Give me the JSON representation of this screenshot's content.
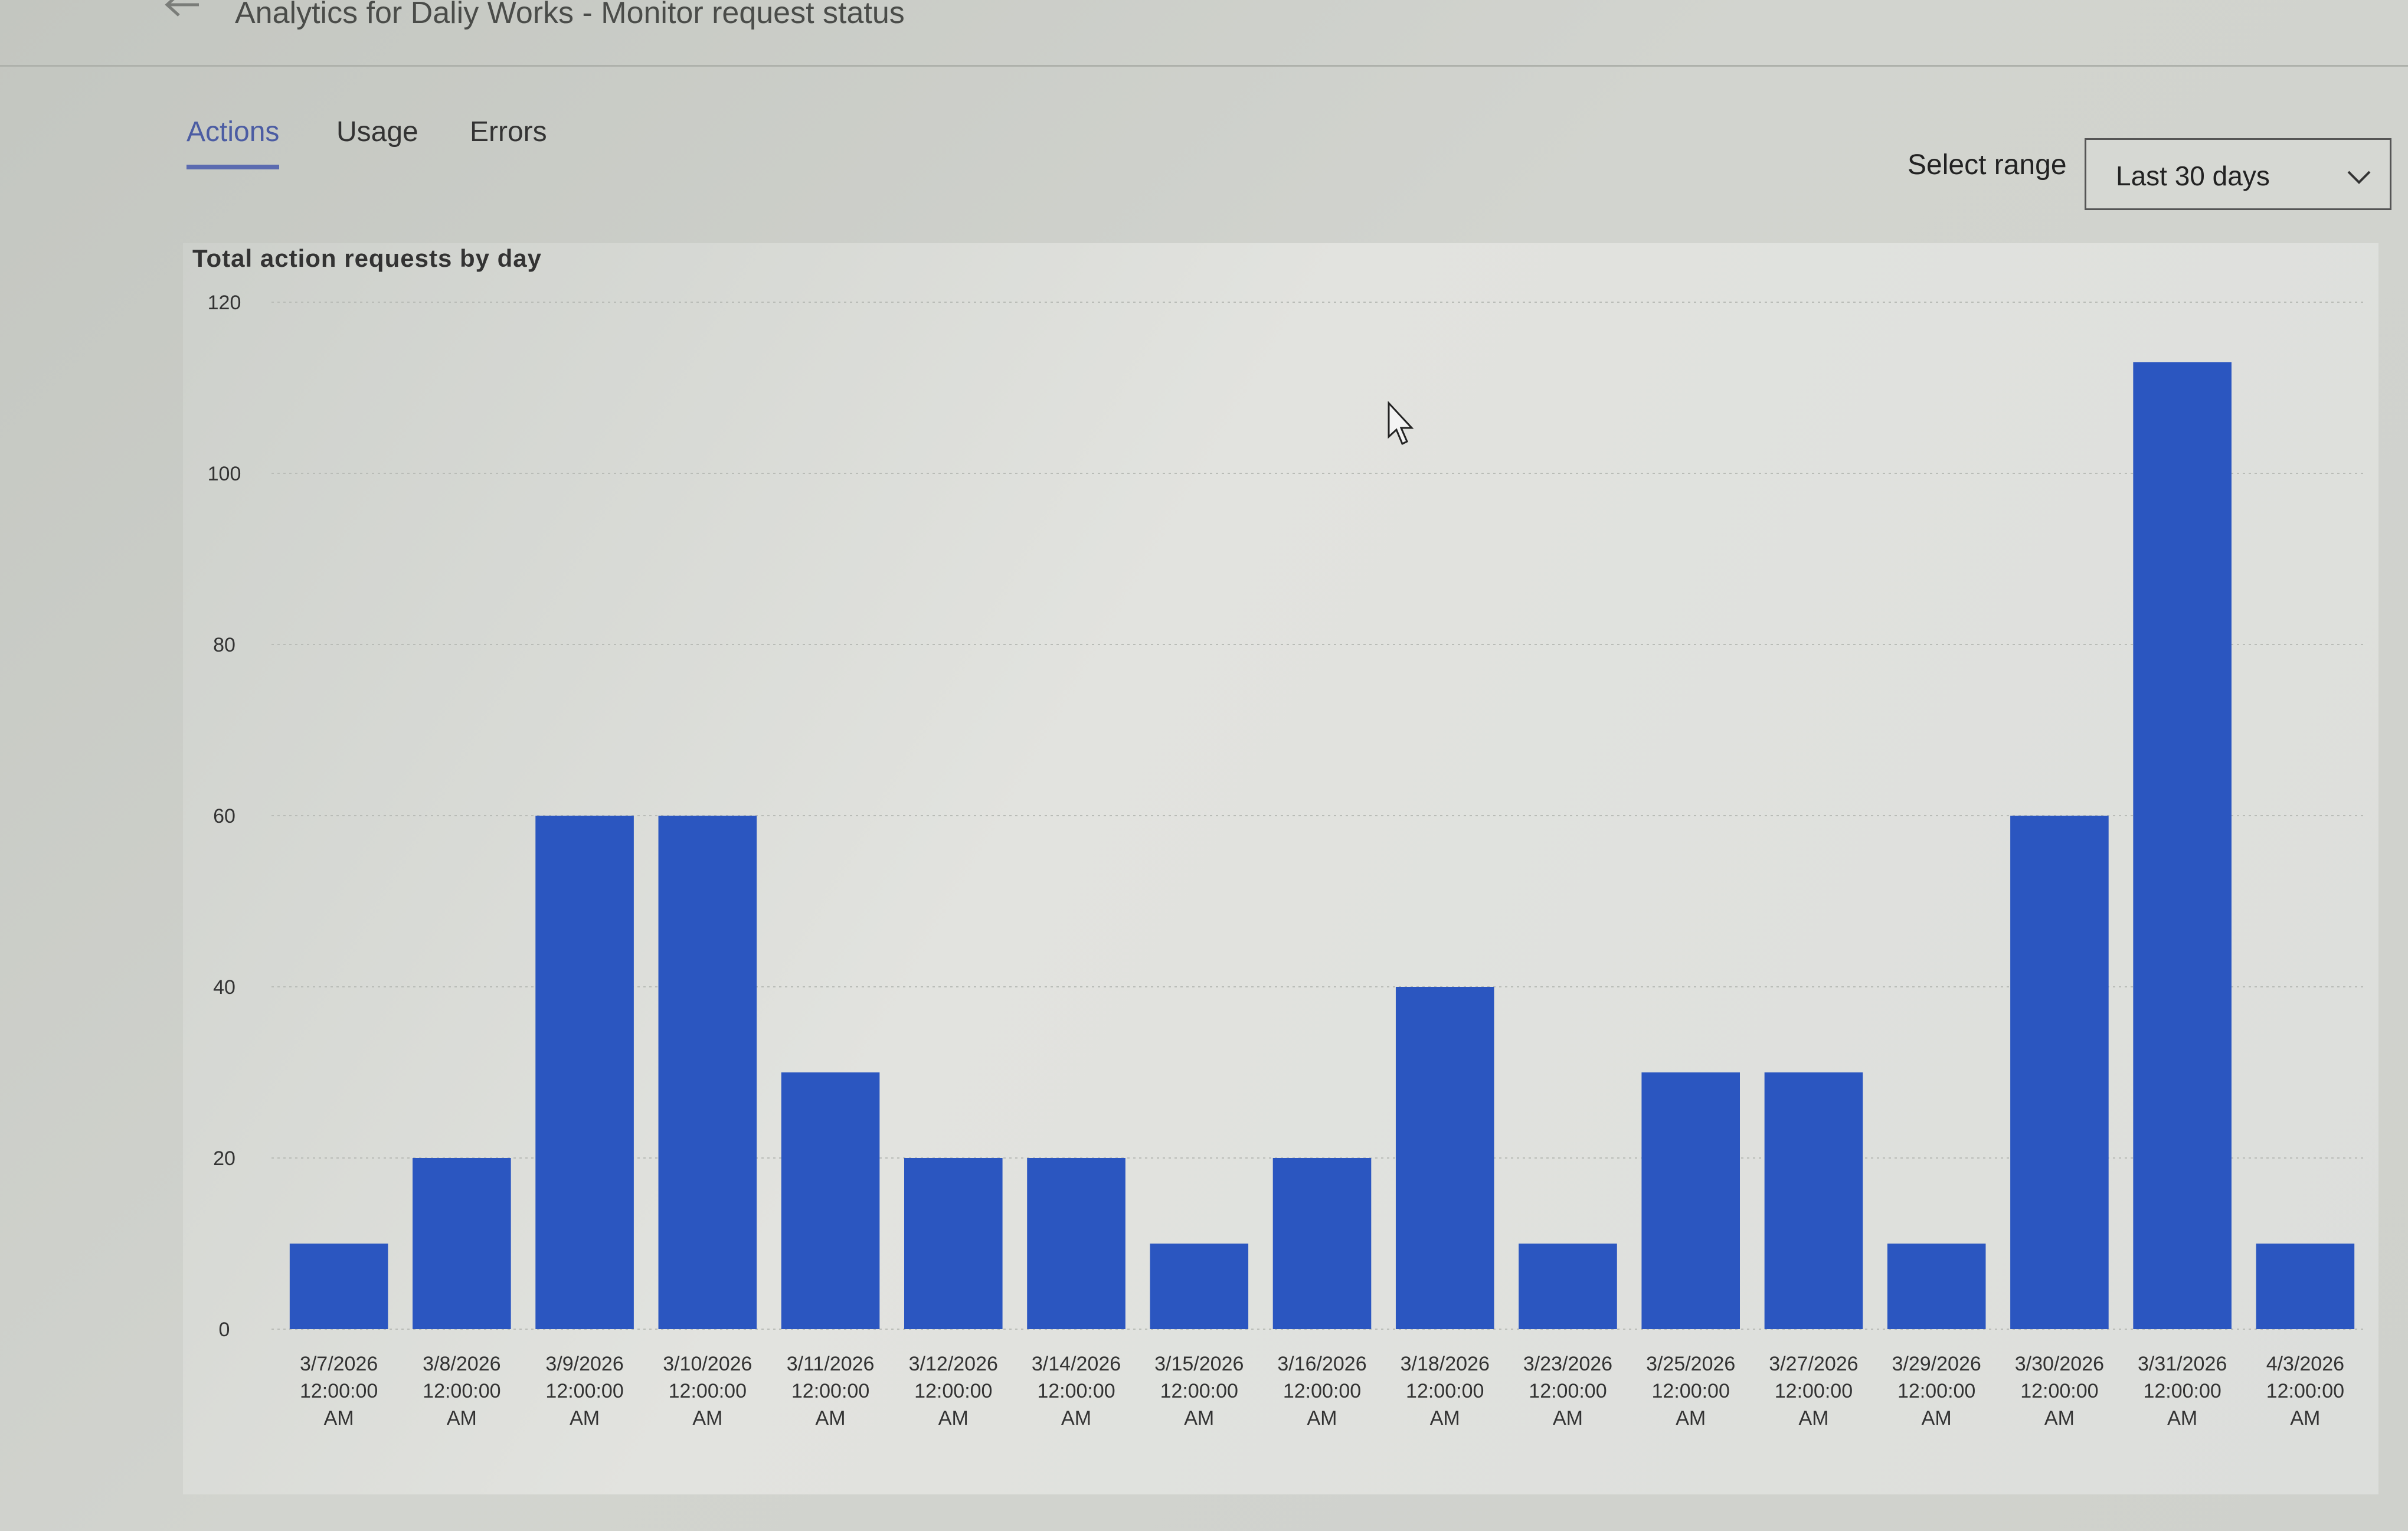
{
  "header": {
    "title": "Analytics for Daliy Works - Monitor request status",
    "back_icon": "arrow-left-icon"
  },
  "tabs": [
    {
      "label": "Actions",
      "active": true
    },
    {
      "label": "Usage",
      "active": false
    },
    {
      "label": "Errors",
      "active": false
    }
  ],
  "range": {
    "label": "Select range",
    "value": "Last 30 days",
    "icon": "chevron-down-icon"
  },
  "colors": {
    "accent": "#5b6bb0",
    "bar": "#2b56c0"
  },
  "chart_data": {
    "type": "bar",
    "title": "Total action requests by day",
    "xlabel": "",
    "ylabel": "",
    "ylim": [
      0,
      120
    ],
    "yticks": [
      0,
      20,
      40,
      60,
      80,
      100,
      120
    ],
    "grid": true,
    "categories": [
      "3/7/2026 12:00:00 AM",
      "3/8/2026 12:00:00 AM",
      "3/9/2026 12:00:00 AM",
      "3/10/2026 12:00:00 AM",
      "3/11/2026 12:00:00 AM",
      "3/12/2026 12:00:00 AM",
      "3/14/2026 12:00:00 AM",
      "3/15/2026 12:00:00 AM",
      "3/16/2026 12:00:00 AM",
      "3/18/2026 12:00:00 AM",
      "3/23/2026 12:00:00 AM",
      "3/25/2026 12:00:00 AM",
      "3/27/2026 12:00:00 AM",
      "3/29/2026 12:00:00 AM",
      "3/30/2026 12:00:00 AM",
      "3/31/2026 12:00:00 AM",
      "4/3/2026 12:00:00 AM"
    ],
    "values": [
      10,
      20,
      60,
      60,
      30,
      20,
      20,
      10,
      20,
      40,
      10,
      30,
      30,
      10,
      60,
      113,
      10
    ]
  }
}
